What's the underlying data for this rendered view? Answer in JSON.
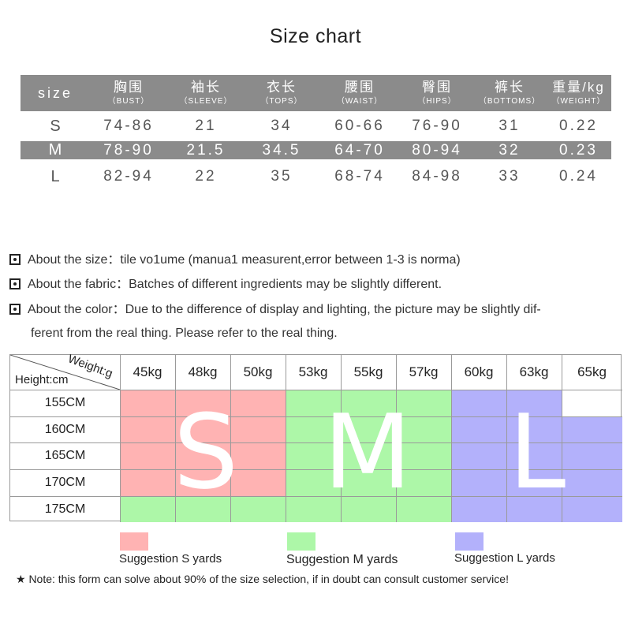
{
  "title": "Size chart",
  "size_table": {
    "size_header": "size",
    "columns": [
      {
        "zh": "胸围",
        "en": "（BUST）"
      },
      {
        "zh": "袖长",
        "en": "（SLEEVE）"
      },
      {
        "zh": "衣长",
        "en": "（TOPS）"
      },
      {
        "zh": "腰围",
        "en": "（WAIST）"
      },
      {
        "zh": "臀围",
        "en": "（HIPS）"
      },
      {
        "zh": "裤长",
        "en": "（BOTTOMS）"
      },
      {
        "zh": "重量/kg",
        "en": "（WEIGHT）"
      }
    ],
    "rows": [
      {
        "size": "S",
        "values": [
          "74-86",
          "21",
          "34",
          "60-66",
          "76-90",
          "31",
          "0.22"
        ]
      },
      {
        "size": "M",
        "values": [
          "78-90",
          "21.5",
          "34.5",
          "64-70",
          "80-94",
          "32",
          "0.23"
        ]
      },
      {
        "size": "L",
        "values": [
          "82-94",
          "22",
          "35",
          "68-74",
          "84-98",
          "33",
          "0.24"
        ]
      }
    ]
  },
  "notes": [
    {
      "text": "About the size：tile vo1ume (manua1 measurent,error between 1-3 is norma)"
    },
    {
      "text": "About the fabric：Batches of different ingredients may be slightly different."
    },
    {
      "text": "About the color：Due to the difference of display and lighting, the picture may be slightly dif-",
      "cont": "ferent from the real thing. Please refer to the real thing."
    }
  ],
  "weight_grid": {
    "weight_label": "Weight:g",
    "height_label": "Height:cm",
    "weights": [
      "45kg",
      "48kg",
      "50kg",
      "53kg",
      "55kg",
      "57kg",
      "60kg",
      "63kg",
      "65kg"
    ],
    "heights": [
      "155CM",
      "160CM",
      "165CM",
      "170CM",
      "175CM"
    ],
    "zones": [
      {
        "size": "S",
        "color": "#ffb3b3"
      },
      {
        "size": "M",
        "color": "#adf7a8"
      },
      {
        "size": "L",
        "color": "#b3b1fb"
      }
    ],
    "big_letters": [
      "S",
      "M",
      "L"
    ]
  },
  "legend": [
    {
      "label": "Suggestion S yards",
      "color": "#ffb3b3"
    },
    {
      "label": "Suggestion M yards",
      "color": "#adf7a8"
    },
    {
      "label": "Suggestion L yards",
      "color": "#b3b1fb"
    }
  ],
  "footnote": "★ Note: this form can solve about 90% of the size selection, if in doubt can consult customer service!"
}
